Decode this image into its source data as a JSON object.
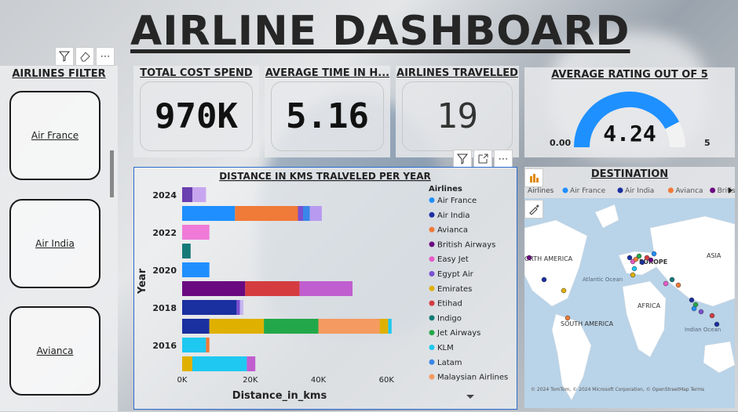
{
  "header": {
    "title": "AIRLINE DASHBOARD"
  },
  "filter_panel": {
    "title": "AIRLINES FILTER",
    "options": [
      "Air France",
      "Air India",
      "Avianca"
    ]
  },
  "kpis": [
    {
      "title": "TOTAL COST SPEND",
      "value": "970K"
    },
    {
      "title": "AVERAGE TIME IN H...",
      "value": "5.16"
    },
    {
      "title": "AIRLINES TRAVELLED",
      "value": "19"
    }
  ],
  "gauge": {
    "title": "AVERAGE RATING OUT OF 5",
    "value": "4.24",
    "min_label": "0.00",
    "max_label": "5",
    "fill_fraction": 0.848,
    "color": "#1e90ff"
  },
  "bar_chart": {
    "title": "DISTANCE IN KMS TRALVELED PER YEAR",
    "xlabel": "Distance_in_kms",
    "ylabel": "Year",
    "xticks": [
      "0K",
      "20K",
      "40K",
      "60K"
    ],
    "year_labels": [
      "2024",
      "2022",
      "2020",
      "2018",
      "2016"
    ],
    "legend_title": "Airlines",
    "legend": [
      {
        "name": "Air France",
        "color": "#1f8fff"
      },
      {
        "name": "Air India",
        "color": "#1a2fa0"
      },
      {
        "name": "Avianca",
        "color": "#f07a38"
      },
      {
        "name": "British Airways",
        "color": "#6a0a80"
      },
      {
        "name": "Easy Jet",
        "color": "#e85ac8"
      },
      {
        "name": "Egypt Air",
        "color": "#7a4fd0"
      },
      {
        "name": "Emirates",
        "color": "#e0b000"
      },
      {
        "name": "Etihad",
        "color": "#d43c40"
      },
      {
        "name": "Indigo",
        "color": "#137a78"
      },
      {
        "name": "Jet Airways",
        "color": "#22a84a"
      },
      {
        "name": "KLM",
        "color": "#1ec8f0"
      },
      {
        "name": "Latam",
        "color": "#3a86e8"
      },
      {
        "name": "Malaysian Airlines",
        "color": "#f59a60"
      }
    ]
  },
  "chart_data": {
    "type": "bar",
    "orientation": "horizontal",
    "stacked": true,
    "title": "DISTANCE IN KMS TRALVELED PER YEAR",
    "xlabel": "Distance_in_kms",
    "ylabel": "Year",
    "xlim": [
      0,
      65000
    ],
    "rows": [
      {
        "category": "2024",
        "segments": [
          {
            "color": "#6a3fb0",
            "value": 3000
          },
          {
            "color": "#c7a6f0",
            "value": 4000
          }
        ]
      },
      {
        "category": "2023",
        "segments": [
          {
            "color": "#1f8fff",
            "value": 15500
          },
          {
            "color": "#f07a38",
            "value": 18500
          },
          {
            "color": "#7a4fd0",
            "value": 1500
          },
          {
            "color": "#3a86e8",
            "value": 2000
          },
          {
            "color": "#b89af0",
            "value": 3500
          }
        ]
      },
      {
        "category": "2022",
        "segments": [
          {
            "color": "#f07ad8",
            "value": 8000
          }
        ]
      },
      {
        "category": "2021",
        "segments": [
          {
            "color": "#137a78",
            "value": 2500
          }
        ]
      },
      {
        "category": "2020",
        "segments": [
          {
            "color": "#1f8fff",
            "value": 8000
          }
        ]
      },
      {
        "category": "2019",
        "segments": [
          {
            "color": "#6a0a80",
            "value": 18500
          },
          {
            "color": "#d43c40",
            "value": 16000
          },
          {
            "color": "#c05ed0",
            "value": 15500
          }
        ]
      },
      {
        "category": "2018",
        "segments": [
          {
            "color": "#1a2fa0",
            "value": 16000
          },
          {
            "color": "#7a4fd0",
            "value": 1000
          },
          {
            "color": "#c7b6f0",
            "value": 1000
          }
        ]
      },
      {
        "category": "2017",
        "segments": [
          {
            "color": "#1a2fa0",
            "value": 8000
          },
          {
            "color": "#e0b000",
            "value": 16000
          },
          {
            "color": "#22a84a",
            "value": 16000
          },
          {
            "color": "#22a84a",
            "value": 0
          },
          {
            "color": "#f59a60",
            "value": 18000
          },
          {
            "color": "#e0b000",
            "value": 2500
          },
          {
            "color": "#1ec8f0",
            "value": 1000
          }
        ]
      },
      {
        "category": "2016",
        "segments": [
          {
            "color": "#1ec8f0",
            "value": 7000
          },
          {
            "color": "#f07a38",
            "value": 1000
          }
        ]
      },
      {
        "category": "2015",
        "segments": [
          {
            "color": "#e0b000",
            "value": 3000
          },
          {
            "color": "#1ec8f0",
            "value": 16000
          },
          {
            "color": "#c05ed0",
            "value": 2500
          }
        ]
      }
    ]
  },
  "map": {
    "title": "DESTINATION",
    "legend_label": "Airlines",
    "legend_items": [
      {
        "name": "Air France",
        "color": "#1f8fff"
      },
      {
        "name": "Air India",
        "color": "#1a2fa0"
      },
      {
        "name": "Avianca",
        "color": "#f07a38"
      },
      {
        "name": "British Air...",
        "color": "#6a0a80"
      }
    ],
    "labels": [
      "ORTH AMERICA",
      "EUROPE",
      "ASIA",
      "Atlantic Ocean",
      "AFRICA",
      "SOUTH AMERICA",
      "Indian Ocean"
    ],
    "attribution": "© 2024 TomTom, © 2024 Microsoft Corporation, © OpenStreetMap  Terms",
    "ocean_color": "#b9d3e8",
    "land_color": "#ffffff"
  }
}
